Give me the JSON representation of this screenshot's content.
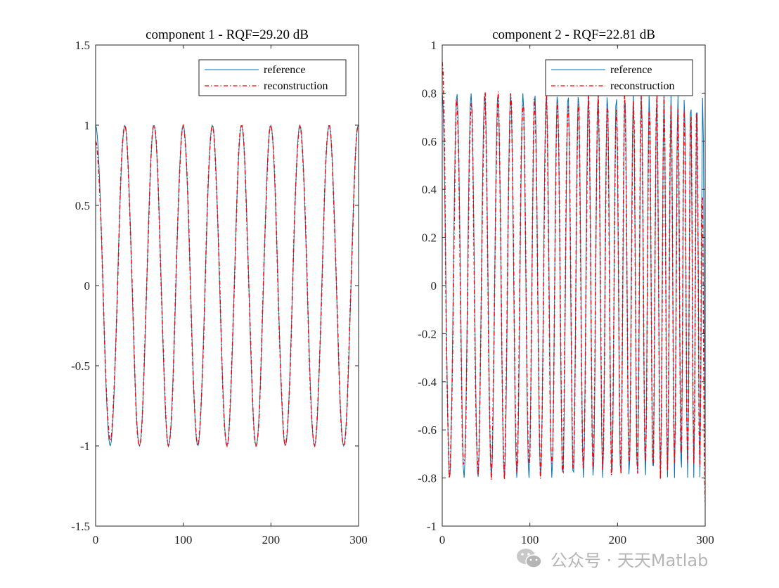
{
  "chart_data": [
    {
      "type": "line",
      "title": "component 1 - RQF=29.20 dB",
      "xlim": [
        0,
        300
      ],
      "ylim": [
        -1.5,
        1.5
      ],
      "xticks": [
        "0",
        "100",
        "200",
        "300"
      ],
      "yticks": [
        "-1.5",
        "-1",
        "-0.5",
        "0",
        "0.5",
        "1",
        "1.5"
      ],
      "grid": false,
      "legend": "top-right",
      "signal": {
        "kind": "cosine",
        "amplitude": 1.0,
        "period": 33.3,
        "samples": 301
      },
      "series": [
        {
          "name": "reference",
          "color": "#0072BD",
          "style": "solid"
        },
        {
          "name": "reconstruction",
          "color": "#FF0000",
          "style": "dash-dot",
          "amplitude_at_start": 0.9
        }
      ]
    },
    {
      "type": "line",
      "title": "component 2 - RQF=22.81 dB",
      "xlim": [
        0,
        300
      ],
      "ylim": [
        -1,
        1
      ],
      "xticks": [
        "0",
        "100",
        "200",
        "300"
      ],
      "yticks": [
        "-1",
        "-0.8",
        "-0.6",
        "-0.4",
        "-0.2",
        "0",
        "0.2",
        "0.4",
        "0.6",
        "0.8",
        "1"
      ],
      "grid": false,
      "legend": "top-right",
      "signal": {
        "kind": "chirp",
        "amplitude": 0.8,
        "period_start": 17,
        "period_end": 6.5,
        "samples": 301
      },
      "series": [
        {
          "name": "reference",
          "color": "#0072BD",
          "style": "solid"
        },
        {
          "name": "reconstruction",
          "color": "#FF0000",
          "style": "dash-dot",
          "start_value": 0.93,
          "end_value": -0.9
        }
      ]
    }
  ],
  "watermark": {
    "text": "公众号 · 天天Matlab",
    "icon": "wechat-icon"
  }
}
